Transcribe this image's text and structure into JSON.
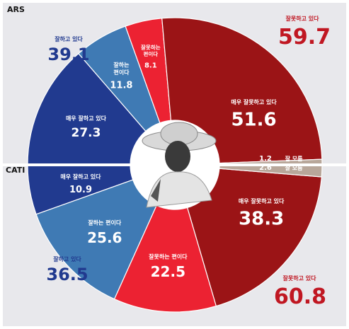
{
  "colors": {
    "background": "#e8e8ec",
    "very_negative": "#9b1416",
    "somewhat_negative": "#ec2232",
    "somewhat_positive": "#3f7ab4",
    "very_positive": "#213a8f",
    "dont_know": "#b8a79a",
    "total_negative_text": "#c01722",
    "total_positive_text": "#213a8f",
    "method_text": "#111111"
  },
  "chart_data": [
    {
      "type": "pie",
      "method": "ARS",
      "half": "top",
      "slices": [
        {
          "key": "very_positive",
          "label": "매우 잘하고 있다",
          "value": 27.3,
          "color": "#213a8f"
        },
        {
          "key": "somewhat_positive",
          "label": "잘하는\n편이다",
          "value": 11.8,
          "color": "#3f7ab4"
        },
        {
          "key": "somewhat_negative",
          "label": "잘못하는\n편이다",
          "value": 8.1,
          "color": "#ec2232"
        },
        {
          "key": "very_negative",
          "label": "매우 잘못하고 있다",
          "value": 51.6,
          "color": "#9b1416"
        },
        {
          "key": "dont_know",
          "label": "잘 모름",
          "value": 1.2,
          "color": "#b8a79a"
        }
      ],
      "totals": {
        "positive": {
          "label": "잘하고 있다",
          "value": "39.1"
        },
        "negative": {
          "label": "잘못하고 있다",
          "value": "59.7"
        }
      }
    },
    {
      "type": "pie",
      "method": "CATI",
      "half": "bottom",
      "slices": [
        {
          "key": "very_positive",
          "label": "매우 잘하고 있다",
          "value": 10.9,
          "color": "#213a8f"
        },
        {
          "key": "somewhat_positive",
          "label": "잘하는 편이다",
          "value": 25.6,
          "color": "#3f7ab4"
        },
        {
          "key": "somewhat_negative",
          "label": "잘못하는 편이다",
          "value": 22.5,
          "color": "#ec2232"
        },
        {
          "key": "very_negative",
          "label": "매우 잘못하고 있다",
          "value": 38.3,
          "color": "#9b1416"
        },
        {
          "key": "dont_know",
          "label": "잘 모름",
          "value": 2.6,
          "color": "#b8a79a"
        }
      ],
      "totals": {
        "positive": {
          "label": "잘하고 있다",
          "value": "36.5"
        },
        "negative": {
          "label": "잘못하고 있다",
          "value": "60.8"
        }
      }
    }
  ],
  "center_image": {
    "icon": "portrait-photo-icon"
  }
}
